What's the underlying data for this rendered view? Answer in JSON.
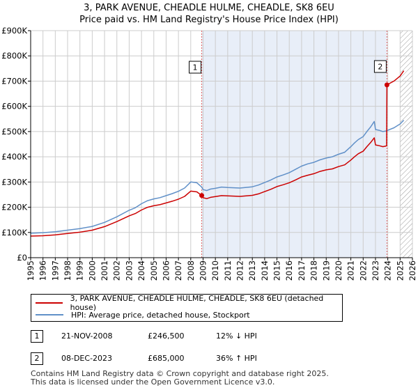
{
  "title_line1": "3, PARK AVENUE, CHEADLE HULME, CHEADLE, SK8 6EU",
  "title_line2": "Price paid vs. HM Land Registry's House Price Index (HPI)",
  "colors": {
    "red": "#cc0000",
    "blue": "#6090c8",
    "shade": "#e8eef8",
    "grid": "#cccccc",
    "vline": "#e06060",
    "hatch": "#999999"
  },
  "legend": {
    "red_label": "3, PARK AVENUE, CHEADLE HULME, CHEADLE, SK8 6EU (detached house)",
    "blue_label": "HPI: Average price, detached house, Stockport"
  },
  "transactions": [
    {
      "marker": "1",
      "date": "21-NOV-2008",
      "price": "£246,500",
      "hpi": "12% ↓ HPI"
    },
    {
      "marker": "2",
      "date": "08-DEC-2023",
      "price": "£685,000",
      "hpi": "36% ↑ HPI"
    }
  ],
  "footer_line1": "Contains HM Land Registry data © Crown copyright and database right 2025.",
  "footer_line2": "This data is licensed under the Open Government Licence v3.0.",
  "chart_data": {
    "type": "line",
    "title": "3, PARK AVENUE, CHEADLE HULME, CHEADLE, SK8 6EU",
    "subtitle": "Price paid vs. HM Land Registry's House Price Index (HPI)",
    "xlabel": "",
    "ylabel": "",
    "xlim": [
      1995,
      2026
    ],
    "ylim": [
      0,
      900000
    ],
    "x_ticks": [
      1995,
      1996,
      1997,
      1998,
      1999,
      2000,
      2001,
      2002,
      2003,
      2004,
      2005,
      2006,
      2007,
      2008,
      2009,
      2010,
      2011,
      2012,
      2013,
      2014,
      2015,
      2016,
      2017,
      2018,
      2019,
      2020,
      2021,
      2022,
      2023,
      2024,
      2025,
      2026
    ],
    "y_ticks": [
      0,
      100000,
      200000,
      300000,
      400000,
      500000,
      600000,
      700000,
      800000,
      900000
    ],
    "y_tick_labels": [
      "£0",
      "£100K",
      "£200K",
      "£300K",
      "£400K",
      "£500K",
      "£600K",
      "£700K",
      "£800K",
      "£900K"
    ],
    "grid": true,
    "shaded_period": [
      2008.89,
      2023.93
    ],
    "future_hatch_from": 2025.0,
    "sales": [
      {
        "label": "1",
        "x": 2008.89,
        "y": 246500
      },
      {
        "label": "2",
        "x": 2023.93,
        "y": 685000
      }
    ],
    "series": [
      {
        "name": "HPI: Average price, detached house, Stockport",
        "color_key": "blue",
        "x": [
          1995,
          1996,
          1997,
          1998,
          1999,
          2000,
          2001,
          2002,
          2003,
          2003.5,
          2004,
          2004.5,
          2005,
          2005.5,
          2006,
          2006.5,
          2007,
          2007.5,
          2008,
          2008.5,
          2008.89,
          2009,
          2009.3,
          2009.6,
          2010,
          2010.5,
          2011,
          2012,
          2013,
          2013.5,
          2014,
          2014.5,
          2015,
          2015.5,
          2016,
          2016.5,
          2017,
          2017.5,
          2018,
          2018.5,
          2019,
          2019.5,
          2020,
          2020.5,
          2021,
          2021.3,
          2021.6,
          2022,
          2022.3,
          2022.6,
          2022.9,
          2023,
          2023.3,
          2023.6,
          2023.93,
          2024,
          2024.5,
          2025,
          2025.3
        ],
        "values": [
          97000,
          99000,
          103000,
          109000,
          115000,
          124000,
          140000,
          162000,
          188000,
          198000,
          214000,
          226000,
          233000,
          238000,
          246000,
          254000,
          263000,
          276000,
          300000,
          297000,
          280000,
          270000,
          266000,
          272000,
          275000,
          280000,
          278000,
          276000,
          281000,
          288000,
          298000,
          308000,
          320000,
          328000,
          337000,
          350000,
          363000,
          372000,
          378000,
          388000,
          395000,
          400000,
          410000,
          418000,
          440000,
          455000,
          468000,
          480000,
          500000,
          518000,
          540000,
          508000,
          505000,
          500000,
          503000,
          505000,
          515000,
          530000,
          545000
        ]
      },
      {
        "name": "3, PARK AVENUE, CHEADLE HULME, CHEADLE, SK8 6EU (detached house)",
        "color_key": "red",
        "x": [
          1995,
          1996,
          1997,
          1998,
          1999,
          2000,
          2001,
          2002,
          2003,
          2003.5,
          2004,
          2004.5,
          2005,
          2005.5,
          2006,
          2006.5,
          2007,
          2007.5,
          2008,
          2008.5,
          2008.89,
          2009,
          2009.3,
          2009.6,
          2010,
          2010.5,
          2011,
          2012,
          2013,
          2013.5,
          2014,
          2014.5,
          2015,
          2015.5,
          2016,
          2016.5,
          2017,
          2017.5,
          2018,
          2018.5,
          2019,
          2019.5,
          2020,
          2020.5,
          2021,
          2021.3,
          2021.6,
          2022,
          2022.3,
          2022.6,
          2022.9,
          2023,
          2023.3,
          2023.6,
          2023.9,
          2023.93,
          2024,
          2024.5,
          2025,
          2025.3
        ],
        "values": [
          85500,
          87000,
          90500,
          96000,
          101000,
          109000,
          123000,
          143000,
          166000,
          175000,
          189000,
          200000,
          206000,
          210000,
          217000,
          224000,
          232000,
          243000,
          264000,
          261000,
          246500,
          237700,
          234000,
          239000,
          242000,
          246000,
          245000,
          243000,
          247000,
          253000,
          262000,
          271000,
          282000,
          289000,
          297000,
          308000,
          320000,
          327000,
          333000,
          342000,
          348000,
          352000,
          361000,
          368000,
          387000,
          400000,
          412000,
          422000,
          440000,
          456000,
          475000,
          447000,
          444000,
          440000,
          443000,
          685000,
          687000,
          700000,
          720000,
          741000
        ]
      }
    ]
  }
}
